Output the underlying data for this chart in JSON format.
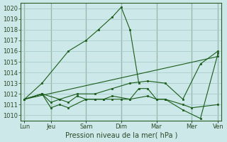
{
  "xlabel": "Pression niveau de la mer( hPa )",
  "background_color": "#cde8e8",
  "grid_color": "#aacccc",
  "line_color": "#1a5c1a",
  "ylim": [
    1009.5,
    1020.5
  ],
  "xlim": [
    -0.2,
    11.2
  ],
  "x_day_positions": [
    0,
    1.5,
    3.5,
    5.5,
    7.5,
    9.5,
    11
  ],
  "x_day_labels": [
    "Lun",
    "Jeu",
    "Sam",
    "Dim",
    "Mar",
    "Mer",
    "Ven"
  ],
  "series": [
    {
      "x": [
        0,
        1,
        2.5,
        3.5,
        4.2,
        5,
        5.5,
        6,
        6.5
      ],
      "y": [
        1011.5,
        1013.0,
        1016.0,
        1017.0,
        1018.0,
        1019.2,
        1020.1,
        1018.0,
        1013.0
      ]
    },
    {
      "x": [
        0,
        1,
        1.5,
        2,
        2.5,
        3.5,
        4,
        4.5,
        5,
        5.5,
        6,
        6.5,
        7,
        7.5,
        8,
        9,
        10,
        11
      ],
      "y": [
        1011.5,
        1012.0,
        1010.7,
        1011.0,
        1010.7,
        1011.5,
        1011.5,
        1011.5,
        1011.5,
        1011.5,
        1011.5,
        1012.5,
        1012.5,
        1011.5,
        1011.5,
        1010.5,
        1009.7,
        1015.8
      ]
    },
    {
      "x": [
        0,
        1,
        1.5,
        2,
        2.5,
        3,
        3.5,
        4,
        4.5,
        5,
        6,
        7,
        7.5,
        8,
        9,
        9.5,
        11
      ],
      "y": [
        1011.5,
        1012.0,
        1011.2,
        1011.5,
        1011.2,
        1011.8,
        1011.5,
        1011.5,
        1011.5,
        1011.8,
        1011.5,
        1011.8,
        1011.5,
        1011.5,
        1011.0,
        1010.7,
        1011.0
      ]
    },
    {
      "x": [
        0,
        1,
        2,
        3,
        4,
        5,
        6,
        7,
        8,
        9,
        10,
        11
      ],
      "y": [
        1011.5,
        1012.0,
        1011.5,
        1012.0,
        1012.0,
        1012.5,
        1013.0,
        1013.2,
        1013.0,
        1011.5,
        1014.8,
        1016.0
      ]
    },
    {
      "x": [
        0,
        11
      ],
      "y": [
        1011.5,
        1015.5
      ]
    }
  ]
}
